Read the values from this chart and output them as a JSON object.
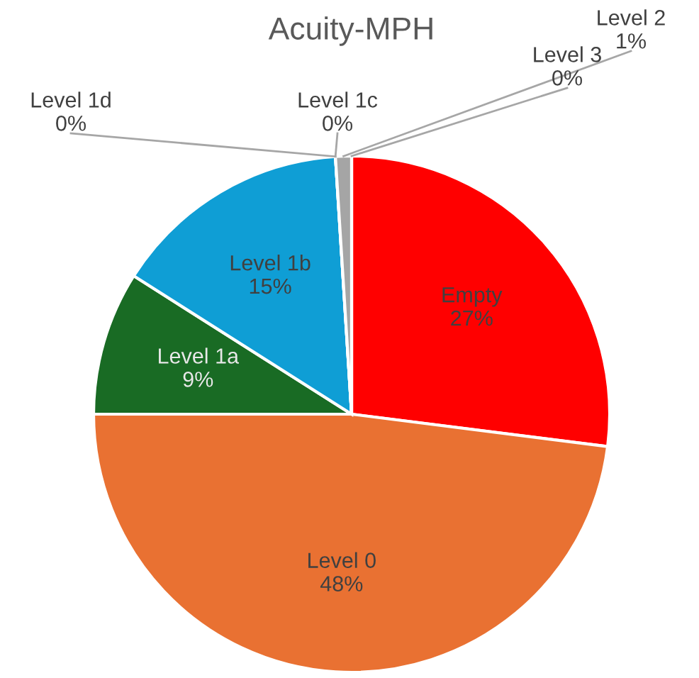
{
  "chart_data": {
    "type": "pie",
    "title": "Acuity-MPH",
    "categories": [
      "Empty",
      "Level 0",
      "Level 1a",
      "Level 1b",
      "Level 1c",
      "Level 1d",
      "Level 2",
      "Level 3"
    ],
    "values": [
      27,
      48,
      9,
      15,
      0,
      0,
      1,
      0
    ],
    "value_labels": [
      "27%",
      "48%",
      "9%",
      "15%",
      "0%",
      "0%",
      "1%",
      "0%"
    ],
    "colors": [
      "#ff0000",
      "#e97132",
      "#196b24",
      "#0f9ed5",
      "#a02b93",
      "#4ea72e",
      "#a5a5a5",
      "#595959"
    ]
  }
}
